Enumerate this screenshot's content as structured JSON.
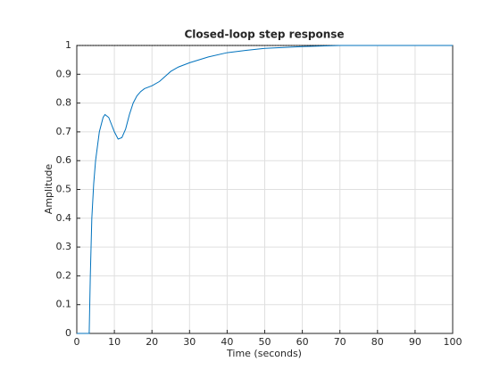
{
  "chart_data": {
    "type": "line",
    "title": "Closed-loop step response",
    "x_label": "Time (seconds)",
    "y_label": "Amplitude",
    "x": [
      0,
      3.3,
      3.6,
      4,
      4.5,
      5,
      6,
      7,
      7.5,
      8.5,
      10,
      11,
      12,
      13,
      14,
      15,
      16,
      17,
      18,
      20,
      22,
      25,
      27,
      30,
      35,
      40,
      45,
      50,
      55,
      60,
      65,
      70,
      80,
      90,
      100
    ],
    "series": [
      {
        "name": "Amplitude",
        "color": "#0072bd",
        "values": [
          0,
          0,
          0.2,
          0.4,
          0.52,
          0.6,
          0.7,
          0.75,
          0.76,
          0.75,
          0.7,
          0.675,
          0.68,
          0.71,
          0.76,
          0.8,
          0.825,
          0.84,
          0.85,
          0.86,
          0.875,
          0.91,
          0.925,
          0.94,
          0.96,
          0.975,
          0.983,
          0.99,
          0.993,
          0.996,
          0.998,
          1,
          1,
          1,
          1
        ]
      }
    ],
    "reference_line": 1,
    "xlim": [
      0,
      100
    ],
    "xticks": [
      0,
      10,
      20,
      30,
      40,
      50,
      60,
      70,
      80,
      90,
      100
    ],
    "ylim": [
      0,
      1
    ],
    "yticks": [
      0,
      0.1,
      0.2,
      0.3,
      0.4,
      0.5,
      0.6,
      0.7,
      0.8,
      0.9,
      1
    ],
    "grid": true
  }
}
